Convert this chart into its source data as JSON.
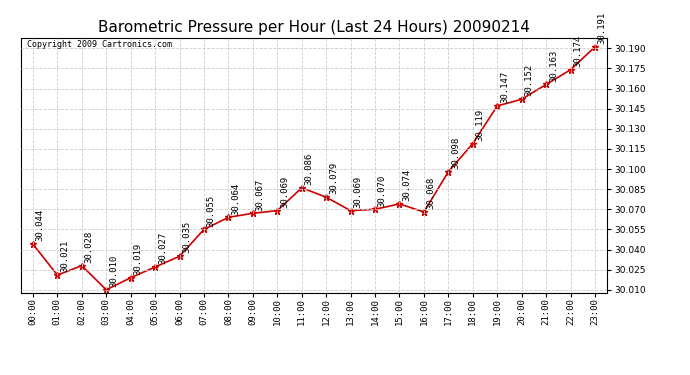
{
  "title": "Barometric Pressure per Hour (Last 24 Hours) 20090214",
  "copyright": "Copyright 2009 Cartronics.com",
  "hours": [
    "00:00",
    "01:00",
    "02:00",
    "03:00",
    "04:00",
    "05:00",
    "06:00",
    "07:00",
    "08:00",
    "09:00",
    "10:00",
    "11:00",
    "12:00",
    "13:00",
    "14:00",
    "15:00",
    "16:00",
    "17:00",
    "18:00",
    "19:00",
    "20:00",
    "21:00",
    "22:00",
    "23:00"
  ],
  "values": [
    30.044,
    30.021,
    30.028,
    30.01,
    30.019,
    30.027,
    30.035,
    30.055,
    30.064,
    30.067,
    30.069,
    30.086,
    30.079,
    30.069,
    30.07,
    30.074,
    30.068,
    30.098,
    30.119,
    30.147,
    30.152,
    30.163,
    30.174,
    30.191
  ],
  "ylim_min": 30.008,
  "ylim_max": 30.198,
  "line_color": "#cc0000",
  "marker_color": "#cc0000",
  "bg_color": "#ffffff",
  "grid_color": "#cccccc",
  "title_fontsize": 11,
  "label_fontsize": 6.5,
  "copyright_fontsize": 6,
  "ytick_interval": 0.015
}
